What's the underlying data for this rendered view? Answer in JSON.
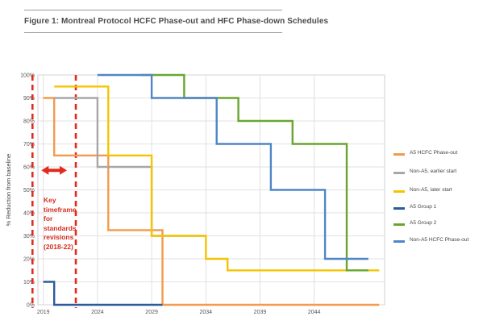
{
  "page": {
    "title": "Figure 1: Montreal Protocol HCFC Phase-out and HFC Phase-down Schedules"
  },
  "annotation": {
    "lines": [
      "Key",
      "timeframe",
      "for",
      "standards",
      "revisions",
      "(2018-22)"
    ],
    "range": [
      2018,
      2022
    ],
    "color": "#e02b1d"
  },
  "legend": {
    "items": [
      {
        "label": "A5 HCFC Phase-out",
        "color": "#f39a4c"
      },
      {
        "label": "Non-A5, earlier start",
        "color": "#a7a7a7"
      },
      {
        "label": "Non-A5, later start",
        "color": "#f5c400"
      },
      {
        "label": "A5 Group 1",
        "color": "#2e5a9b"
      },
      {
        "label": "A5 Group 2",
        "color": "#6aa531"
      },
      {
        "label": "Non-A5 HCFC Phase-out",
        "color": "#4f86c6"
      }
    ]
  },
  "chart_data": {
    "type": "line",
    "step": true,
    "title": "",
    "xlabel": "",
    "ylabel": "% Reduction from baseline",
    "xlim": [
      2018.5,
      2050.5
    ],
    "ylim": [
      0,
      100
    ],
    "x_ticks": [
      2019,
      2024,
      2029,
      2034,
      2039,
      2044
    ],
    "y_ticks": [
      "0%",
      "10%",
      "20%",
      "30%",
      "40%",
      "50%",
      "60%",
      "70%",
      "80%",
      "90%",
      "100%"
    ],
    "grid": true,
    "legend_position": "right",
    "series": [
      {
        "name": "A5 HCFC Phase-out",
        "color": "#f39a4c",
        "points": [
          [
            2019,
            90
          ],
          [
            2020,
            90
          ],
          [
            2020,
            65
          ],
          [
            2025,
            65
          ],
          [
            2025,
            32.5
          ],
          [
            2030,
            32.5
          ],
          [
            2030,
            0
          ],
          [
            2050,
            0
          ]
        ]
      },
      {
        "name": "Non-A5, earlier start",
        "color": "#a7a7a7",
        "points": [
          [
            2020,
            90
          ],
          [
            2024,
            90
          ],
          [
            2024,
            60
          ],
          [
            2029,
            60
          ],
          [
            2029,
            30
          ],
          [
            2034,
            30
          ]
        ]
      },
      {
        "name": "Non-A5, later start",
        "color": "#f5c400",
        "points": [
          [
            2020,
            95
          ],
          [
            2025,
            95
          ],
          [
            2025,
            65
          ],
          [
            2029,
            65
          ],
          [
            2029,
            30
          ],
          [
            2034,
            30
          ],
          [
            2034,
            20
          ],
          [
            2036,
            20
          ],
          [
            2036,
            15
          ],
          [
            2050,
            15
          ]
        ]
      },
      {
        "name": "A5 Group 1",
        "color": "#2e5a9b",
        "points": [
          [
            2019,
            10
          ],
          [
            2020,
            10
          ],
          [
            2020,
            0
          ],
          [
            2030,
            0
          ]
        ]
      },
      {
        "name": "A5 Group 2",
        "color": "#6aa531",
        "points": [
          [
            2028,
            100
          ],
          [
            2032,
            100
          ],
          [
            2032,
            90
          ],
          [
            2037,
            90
          ],
          [
            2037,
            80
          ],
          [
            2042,
            80
          ],
          [
            2042,
            70
          ],
          [
            2047,
            70
          ],
          [
            2047,
            15
          ],
          [
            2049,
            15
          ]
        ]
      },
      {
        "name": "Non-A5 HCFC Phase-out",
        "color": "#4f86c6",
        "points": [
          [
            2024,
            100
          ],
          [
            2029,
            100
          ],
          [
            2029,
            90
          ],
          [
            2035,
            90
          ],
          [
            2035,
            70
          ],
          [
            2040,
            70
          ],
          [
            2040,
            50
          ],
          [
            2045,
            50
          ],
          [
            2045,
            20
          ],
          [
            2049,
            20
          ]
        ]
      }
    ]
  }
}
